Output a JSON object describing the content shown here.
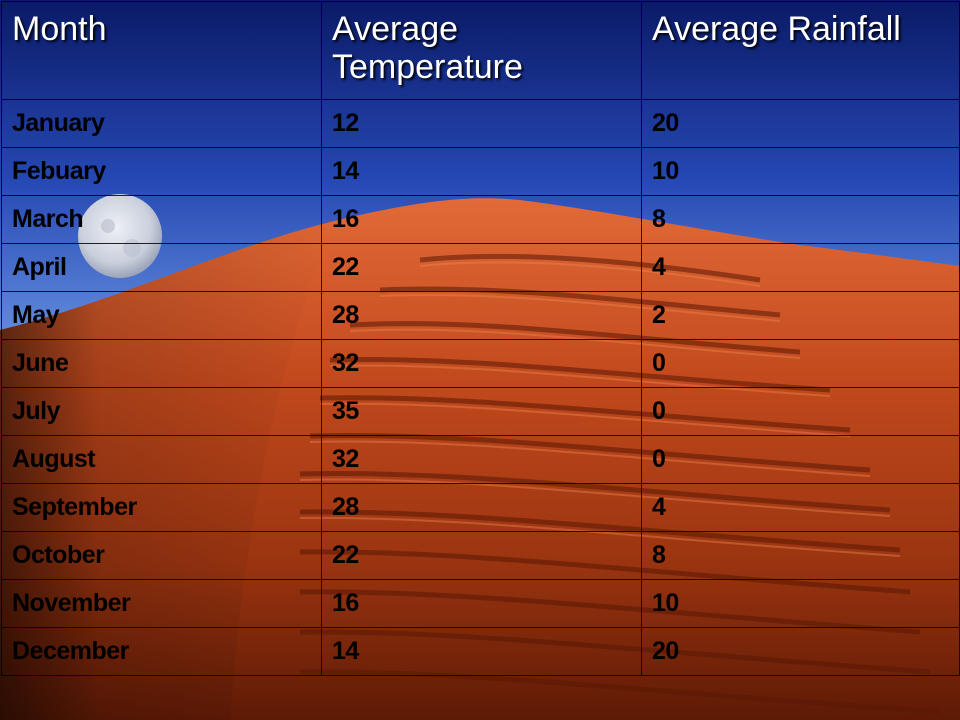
{
  "table": {
    "headers": [
      "Month",
      "Average Temperature",
      "Average Rainfall"
    ],
    "rows": [
      [
        "January",
        "12",
        "20"
      ],
      [
        "Febuary",
        "14",
        "10"
      ],
      [
        "March",
        "16",
        "8"
      ],
      [
        "April",
        "22",
        "4"
      ],
      [
        "May",
        "28",
        "2"
      ],
      [
        "June",
        "32",
        "0"
      ],
      [
        "July",
        "35",
        "0"
      ],
      [
        "August",
        "32",
        "0"
      ],
      [
        "September",
        "28",
        "4"
      ],
      [
        "October",
        "22",
        "8"
      ],
      [
        "November",
        "16",
        "10"
      ],
      [
        "December",
        "14",
        "20"
      ]
    ]
  },
  "background": {
    "sky_top": "#0d1f73",
    "sky_mid": "#3a5fc8",
    "sky_low": "#a9c0ec",
    "dune_light": "#e0693a",
    "dune_dark": "#7a2408",
    "moon": "#d9dde6"
  }
}
